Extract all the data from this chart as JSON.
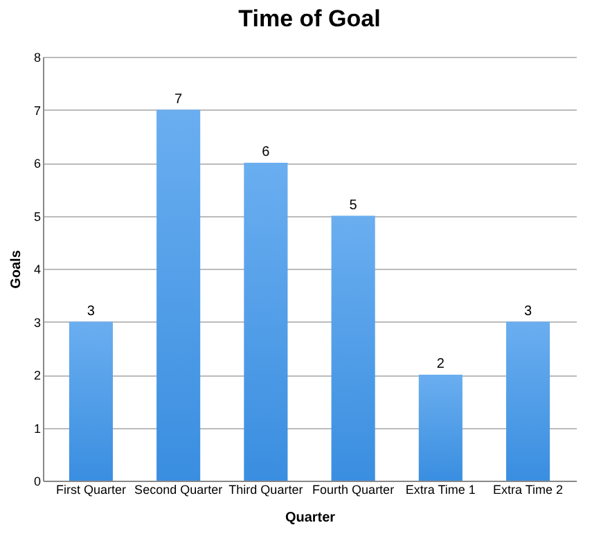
{
  "chart_data": {
    "type": "bar",
    "title": "Time of Goal",
    "xlabel": "Quarter",
    "ylabel": "Goals",
    "categories": [
      "First Quarter",
      "Second Quarter",
      "Third Quarter",
      "Fourth Quarter",
      "Extra Time 1",
      "Extra Time 2"
    ],
    "values": [
      3,
      7,
      6,
      5,
      2,
      3
    ],
    "color": "#6aaef0",
    "ylim": [
      0,
      8
    ],
    "yticks": [
      0,
      1,
      2,
      3,
      4,
      5,
      6,
      7,
      8
    ],
    "grid": "y",
    "data_labels": true
  }
}
